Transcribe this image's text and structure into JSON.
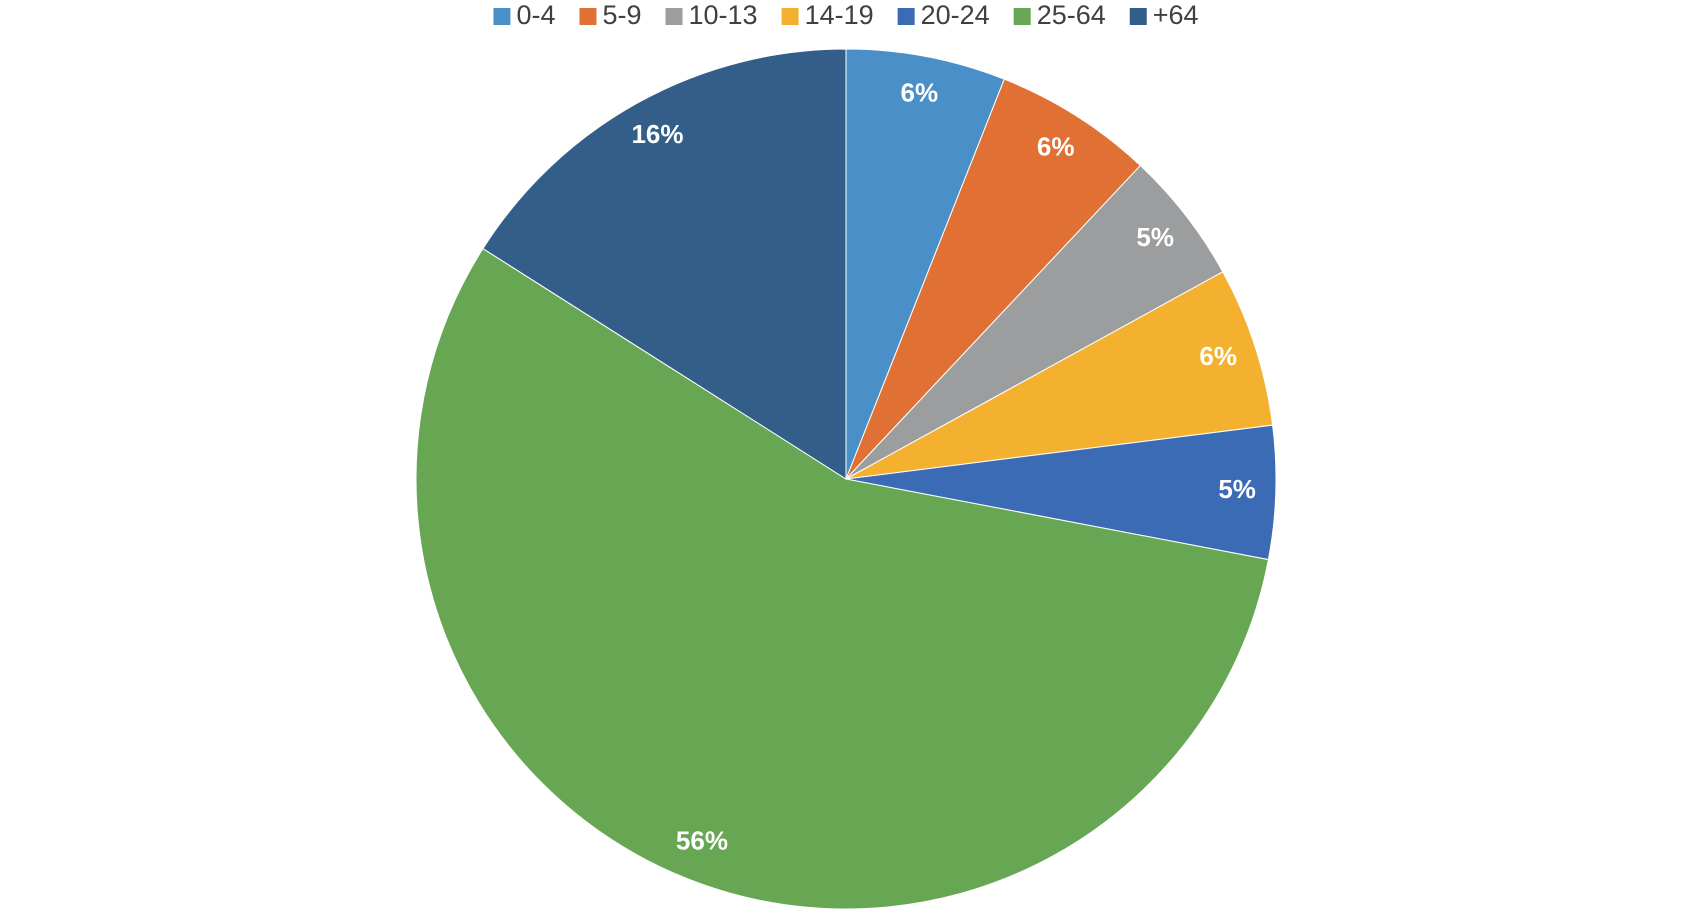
{
  "chart_data": {
    "type": "pie",
    "categories": [
      "0-4",
      "5-9",
      "10-13",
      "14-19",
      "20-24",
      "25-64",
      "+64"
    ],
    "values": [
      6,
      6,
      5,
      6,
      5,
      56,
      16
    ],
    "value_labels": [
      "6%",
      "6%",
      "5%",
      "6%",
      "5%",
      "56%",
      "16%"
    ],
    "colors": [
      "#4a8fc8",
      "#e07033",
      "#9b9d9f",
      "#f4b12f",
      "#3b6bb5",
      "#67a652",
      "#335e8a"
    ],
    "legend": "top"
  }
}
